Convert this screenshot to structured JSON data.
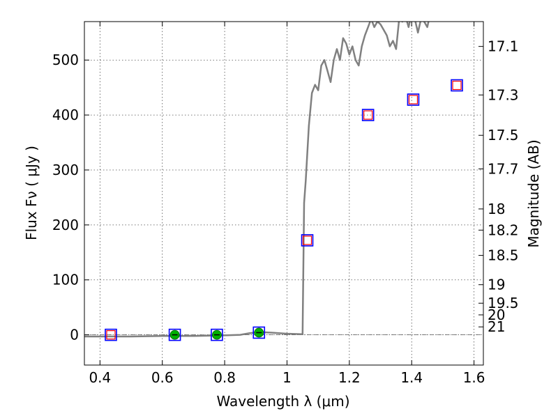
{
  "chart_data": {
    "type": "scatter",
    "title": "",
    "xlabel": "Wavelength  λ (μm)",
    "ylabel": "Flux  Fν  ( μJy )",
    "y2label": "Magnitude (AB)",
    "xlim": [
      0.35,
      1.63
    ],
    "ylim": [
      -55,
      570
    ],
    "grid": true,
    "x_ticks": [
      {
        "value": 0.4,
        "label": "0.4"
      },
      {
        "value": 0.6,
        "label": "0.6"
      },
      {
        "value": 0.8,
        "label": "0.8"
      },
      {
        "value": 1.0,
        "label": "1"
      },
      {
        "value": 1.2,
        "label": "1.2"
      },
      {
        "value": 1.4,
        "label": "1.4"
      },
      {
        "value": 1.6,
        "label": "1.6"
      }
    ],
    "y_ticks": [
      {
        "value": 0,
        "label": "0"
      },
      {
        "value": 100,
        "label": "100"
      },
      {
        "value": 200,
        "label": "200"
      },
      {
        "value": 300,
        "label": "300"
      },
      {
        "value": 400,
        "label": "400"
      },
      {
        "value": 500,
        "label": "500"
      }
    ],
    "y2_ticks": [
      {
        "value": 17.1,
        "label": "17.1"
      },
      {
        "value": 17.3,
        "label": "17.3"
      },
      {
        "value": 17.5,
        "label": "17.5"
      },
      {
        "value": 17.7,
        "label": "17.7"
      },
      {
        "value": 18.0,
        "label": "18"
      },
      {
        "value": 18.2,
        "label": "18.2"
      },
      {
        "value": 18.5,
        "label": "18.5"
      },
      {
        "value": 19.0,
        "label": "19"
      },
      {
        "value": 19.5,
        "label": "19.5"
      },
      {
        "value": 20.0,
        "label": "20"
      },
      {
        "value": 21.0,
        "label": "21"
      }
    ],
    "series": [
      {
        "kind": "model_spectrum",
        "color": "#808080",
        "x": [
          0.35,
          0.4,
          0.5,
          0.6,
          0.7,
          0.8,
          0.85,
          0.88,
          0.91,
          0.95,
          1.0,
          1.05,
          1.055,
          1.06,
          1.07,
          1.08,
          1.09,
          1.1,
          1.11,
          1.12,
          1.13,
          1.14,
          1.15,
          1.16,
          1.17,
          1.18,
          1.19,
          1.2,
          1.21,
          1.22,
          1.23,
          1.24,
          1.25,
          1.26,
          1.27,
          1.28,
          1.29,
          1.3,
          1.31,
          1.32,
          1.33,
          1.34,
          1.35,
          1.36,
          1.37,
          1.38,
          1.39,
          1.4,
          1.41,
          1.42,
          1.43,
          1.44,
          1.45,
          1.46
        ],
        "y": [
          -3,
          -3,
          -3,
          -2,
          -2,
          -1,
          0,
          3,
          5,
          4,
          2,
          1,
          240,
          280,
          380,
          440,
          455,
          445,
          490,
          500,
          480,
          460,
          500,
          520,
          500,
          540,
          530,
          510,
          525,
          500,
          490,
          525,
          545,
          560,
          575,
          560,
          570,
          565,
          555,
          545,
          525,
          535,
          520,
          575,
          570,
          580,
          560,
          585,
          575,
          550,
          575,
          570,
          560,
          585
        ]
      },
      {
        "kind": "observed_photometry",
        "marker": "open-square",
        "color": "#0000ff",
        "x": [
          0.435,
          0.64,
          0.775,
          0.91,
          1.065,
          1.26,
          1.405,
          1.545
        ],
        "y": [
          0,
          0,
          0,
          4,
          172,
          400,
          428,
          454
        ]
      },
      {
        "kind": "model_photometry",
        "marker": "open-square",
        "color": "#ff0000",
        "x": [
          0.435,
          1.065,
          1.26,
          1.405,
          1.545
        ],
        "y": [
          0,
          172,
          400,
          428,
          454
        ]
      },
      {
        "kind": "model_photometry",
        "marker": "filled-circle",
        "color": "#00b000",
        "x": [
          0.64,
          0.775,
          0.91
        ],
        "y": [
          0,
          0,
          4
        ]
      }
    ]
  }
}
